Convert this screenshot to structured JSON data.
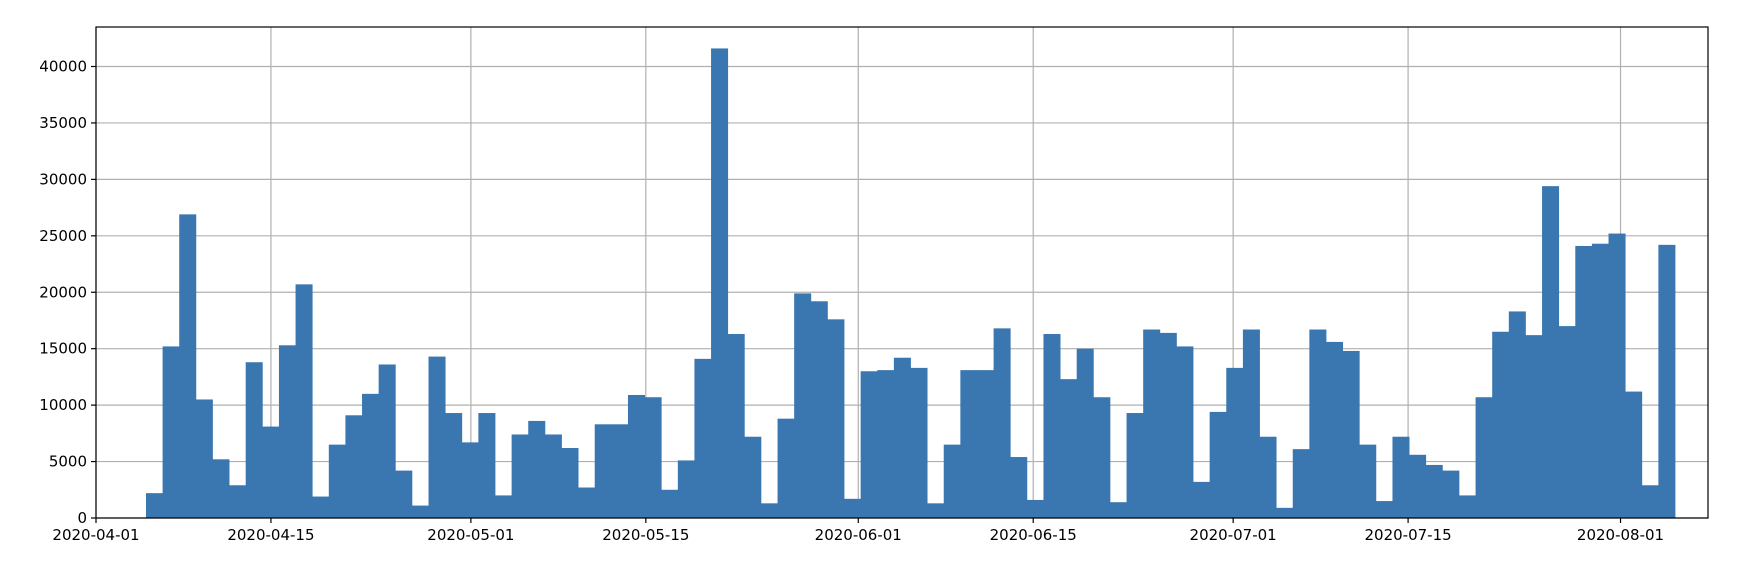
{
  "chart_data": {
    "type": "bar",
    "title": "",
    "xlabel": "",
    "ylabel": "",
    "grid": true,
    "color": "#3a76af",
    "xlim": [
      "2020-04-01",
      "2020-08-08"
    ],
    "ylim": [
      0,
      43500
    ],
    "x_ticks": [
      "2020-04-01",
      "2020-04-15",
      "2020-05-01",
      "2020-05-15",
      "2020-06-01",
      "2020-06-15",
      "2020-07-01",
      "2020-07-15",
      "2020-08-01"
    ],
    "y_ticks": [
      0,
      5000,
      10000,
      15000,
      20000,
      25000,
      30000,
      35000,
      40000
    ],
    "bin_start": "2020-04-05",
    "bin_width_days": 1.33,
    "values": [
      2200,
      15200,
      26900,
      10500,
      5200,
      2900,
      13800,
      8100,
      15300,
      20700,
      1900,
      6500,
      9100,
      11000,
      13600,
      4200,
      1100,
      14300,
      9300,
      6700,
      9300,
      2000,
      7400,
      8600,
      7400,
      6200,
      2700,
      8300,
      8300,
      10900,
      10700,
      2500,
      5100,
      14100,
      41600,
      16300,
      7200,
      1300,
      8800,
      19900,
      19200,
      17600,
      1700,
      13000,
      13100,
      14200,
      13300,
      1300,
      6500,
      13100,
      13100,
      16800,
      5400,
      1600,
      16300,
      12300,
      15000,
      10700,
      1400,
      9300,
      16700,
      16400,
      15200,
      3200,
      9400,
      13300,
      16700,
      7200,
      900,
      6100,
      16700,
      15600,
      14800,
      6500,
      1500,
      7200,
      5600,
      4700,
      4200,
      2000,
      10700,
      16500,
      18300,
      16200,
      29400,
      17000,
      24100,
      24300,
      25200,
      11200,
      2900,
      24200
    ]
  }
}
